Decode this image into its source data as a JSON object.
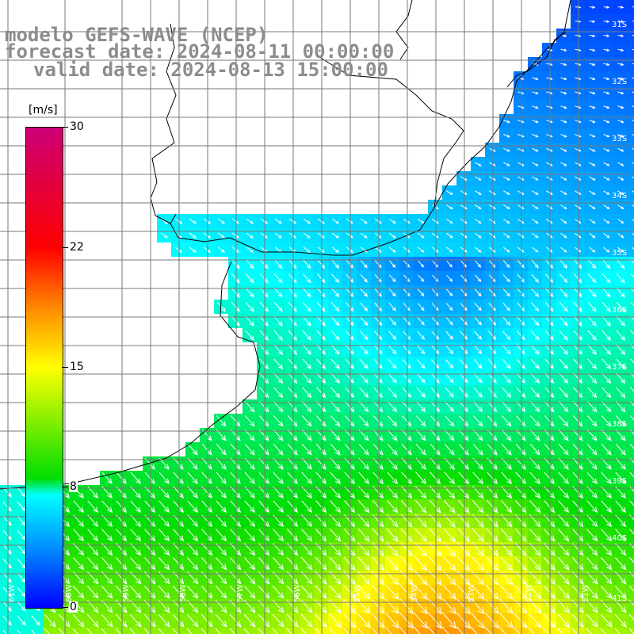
{
  "titles": {
    "line1": "modelo GEFS-WAVE (NCEP)",
    "line2": "forecast date: 2024-08-11 00:00:00",
    "line3": "valid date: 2024-08-13 15:00:00"
  },
  "colorbar": {
    "unit": "[m/s]",
    "min": 0,
    "max": 30,
    "ticks": [
      "30",
      "22",
      "15",
      "8",
      "0"
    ],
    "tick_values": [
      30,
      22,
      15,
      8,
      0
    ],
    "colors": [
      "#0000ff",
      "#0088ff",
      "#00ffff",
      "#00dd00",
      "#ffff00",
      "#ff8800",
      "#ff0000",
      "#cc0077"
    ]
  },
  "map": {
    "lon_labels": [
      "61W",
      "60W",
      "59W",
      "58W",
      "57W",
      "56W",
      "55W",
      "54W",
      "53W",
      "52W",
      "51W"
    ],
    "lat_labels": [
      "31S",
      "32S",
      "33S",
      "34S",
      "35S",
      "36S",
      "37S",
      "38S",
      "39S",
      "40S",
      "41S"
    ],
    "background": "#ffffff",
    "coastline_color": "#000000",
    "grid_color": "#777777",
    "arrow_color": "#ffffff"
  }
}
